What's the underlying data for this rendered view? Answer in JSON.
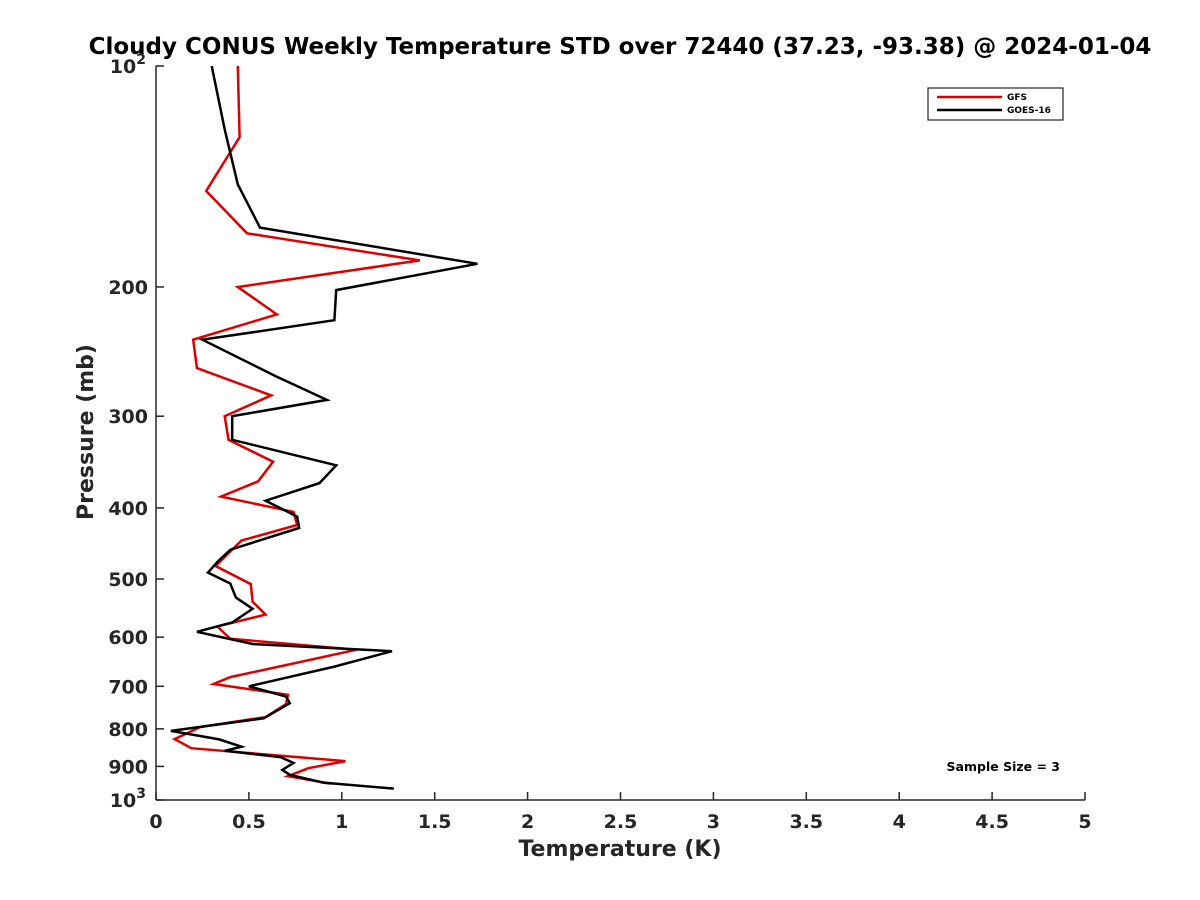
{
  "chart_data": {
    "type": "line",
    "title": "Cloudy CONUS Weekly Temperature STD over 72440 (37.23, -93.38) @ 2024-01-04",
    "xlabel": "Temperature (K)",
    "ylabel": "Pressure (mb)",
    "xlim": [
      0,
      5
    ],
    "ylim": [
      100,
      1000
    ],
    "y_scale": "log",
    "y_reversed": true,
    "x_ticks": [
      "0",
      "0.5",
      "1",
      "1.5",
      "2",
      "2.5",
      "3",
      "3.5",
      "4",
      "4.5",
      "5"
    ],
    "y_ticks": [
      {
        "value": 100,
        "base": "10",
        "exp": "2"
      },
      {
        "value": 200,
        "label": "200"
      },
      {
        "value": 300,
        "label": "300"
      },
      {
        "value": 400,
        "label": "400"
      },
      {
        "value": 500,
        "label": "500"
      },
      {
        "value": 600,
        "label": "600"
      },
      {
        "value": 700,
        "label": "700"
      },
      {
        "value": 800,
        "label": "800"
      },
      {
        "value": 900,
        "label": "900"
      },
      {
        "value": 1000,
        "base": "10",
        "exp": "3"
      }
    ],
    "grid": false,
    "legend_position": "top-right",
    "annotation": "Sample Size = 3",
    "series": [
      {
        "name": "GFS",
        "color": "#dd0000",
        "points": [
          [
            0.44,
            100
          ],
          [
            0.45,
            125
          ],
          [
            0.27,
            148
          ],
          [
            0.49,
            169
          ],
          [
            1.42,
            184
          ],
          [
            0.44,
            200
          ],
          [
            0.65,
            218
          ],
          [
            0.2,
            236
          ],
          [
            0.22,
            258
          ],
          [
            0.62,
            281
          ],
          [
            0.37,
            300
          ],
          [
            0.39,
            323
          ],
          [
            0.63,
            346
          ],
          [
            0.55,
            368
          ],
          [
            0.35,
            386
          ],
          [
            0.74,
            405
          ],
          [
            0.76,
            422
          ],
          [
            0.46,
            443
          ],
          [
            0.32,
            480
          ],
          [
            0.51,
            508
          ],
          [
            0.52,
            537
          ],
          [
            0.59,
            559
          ],
          [
            0.33,
            580
          ],
          [
            0.4,
            603
          ],
          [
            1.08,
            624
          ],
          [
            0.64,
            660
          ],
          [
            0.4,
            680
          ],
          [
            0.31,
            695
          ],
          [
            0.71,
            719
          ],
          [
            0.7,
            740
          ],
          [
            0.59,
            771
          ],
          [
            0.24,
            795
          ],
          [
            0.1,
            826
          ],
          [
            0.19,
            850
          ],
          [
            1.02,
            885
          ],
          [
            0.82,
            905
          ],
          [
            0.71,
            928
          ],
          [
            0.94,
            950
          ]
        ]
      },
      {
        "name": "GOES-16",
        "color": "#000000",
        "points": [
          [
            0.3,
            100
          ],
          [
            0.37,
            122
          ],
          [
            0.44,
            145
          ],
          [
            0.56,
            166
          ],
          [
            1.73,
            186
          ],
          [
            0.97,
            202
          ],
          [
            0.96,
            222
          ],
          [
            0.25,
            236
          ],
          [
            0.65,
            265
          ],
          [
            0.92,
            285
          ],
          [
            0.41,
            300
          ],
          [
            0.41,
            323
          ],
          [
            0.97,
            350
          ],
          [
            0.88,
            370
          ],
          [
            0.59,
            391
          ],
          [
            0.76,
            411
          ],
          [
            0.77,
            426
          ],
          [
            0.4,
            456
          ],
          [
            0.33,
            474
          ],
          [
            0.28,
            490
          ],
          [
            0.4,
            507
          ],
          [
            0.43,
            530
          ],
          [
            0.52,
            549
          ],
          [
            0.41,
            573
          ],
          [
            0.22,
            590
          ],
          [
            0.52,
            613
          ],
          [
            1.27,
            627
          ],
          [
            0.96,
            658
          ],
          [
            0.5,
            700
          ],
          [
            0.7,
            723
          ],
          [
            0.72,
            738
          ],
          [
            0.58,
            774
          ],
          [
            0.08,
            805
          ],
          [
            0.34,
            827
          ],
          [
            0.46,
            846
          ],
          [
            0.37,
            857
          ],
          [
            0.67,
            874
          ],
          [
            0.74,
            890
          ],
          [
            0.68,
            910
          ],
          [
            0.72,
            924
          ],
          [
            0.9,
            947
          ],
          [
            1.28,
            965
          ]
        ]
      }
    ]
  }
}
